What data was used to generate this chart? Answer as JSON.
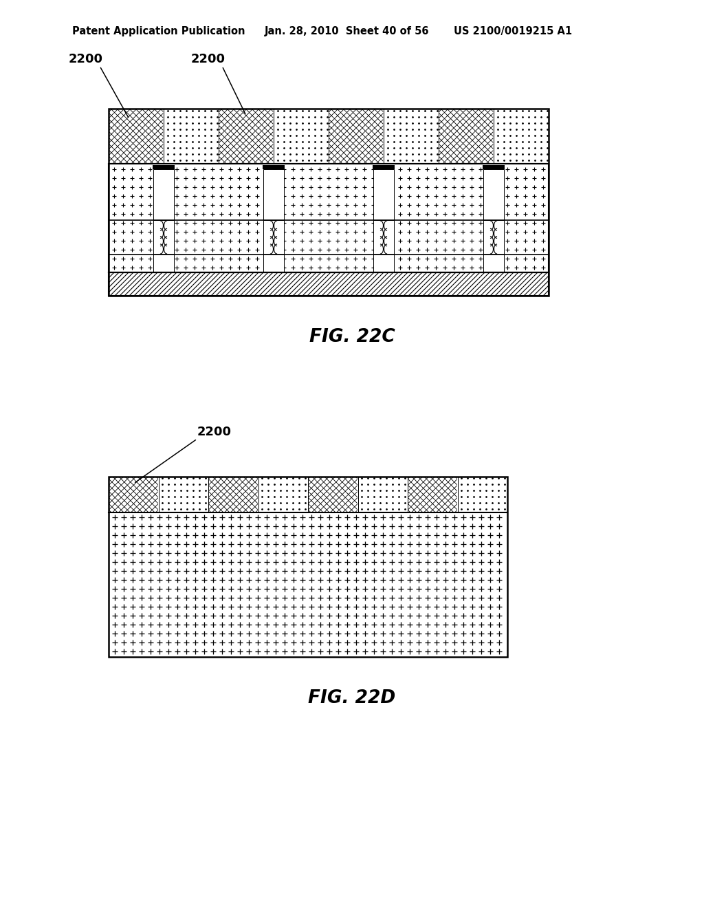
{
  "bg_color": "#ffffff",
  "line_color": "#000000",
  "fig_c_label": "FIG. 22C",
  "fig_d_label": "FIG. 22D",
  "header_left": "Patent Application Publication",
  "header_mid": "Jan. 28, 2010  Sheet 40 of 56",
  "header_right": "US 2100/0019215 A1"
}
